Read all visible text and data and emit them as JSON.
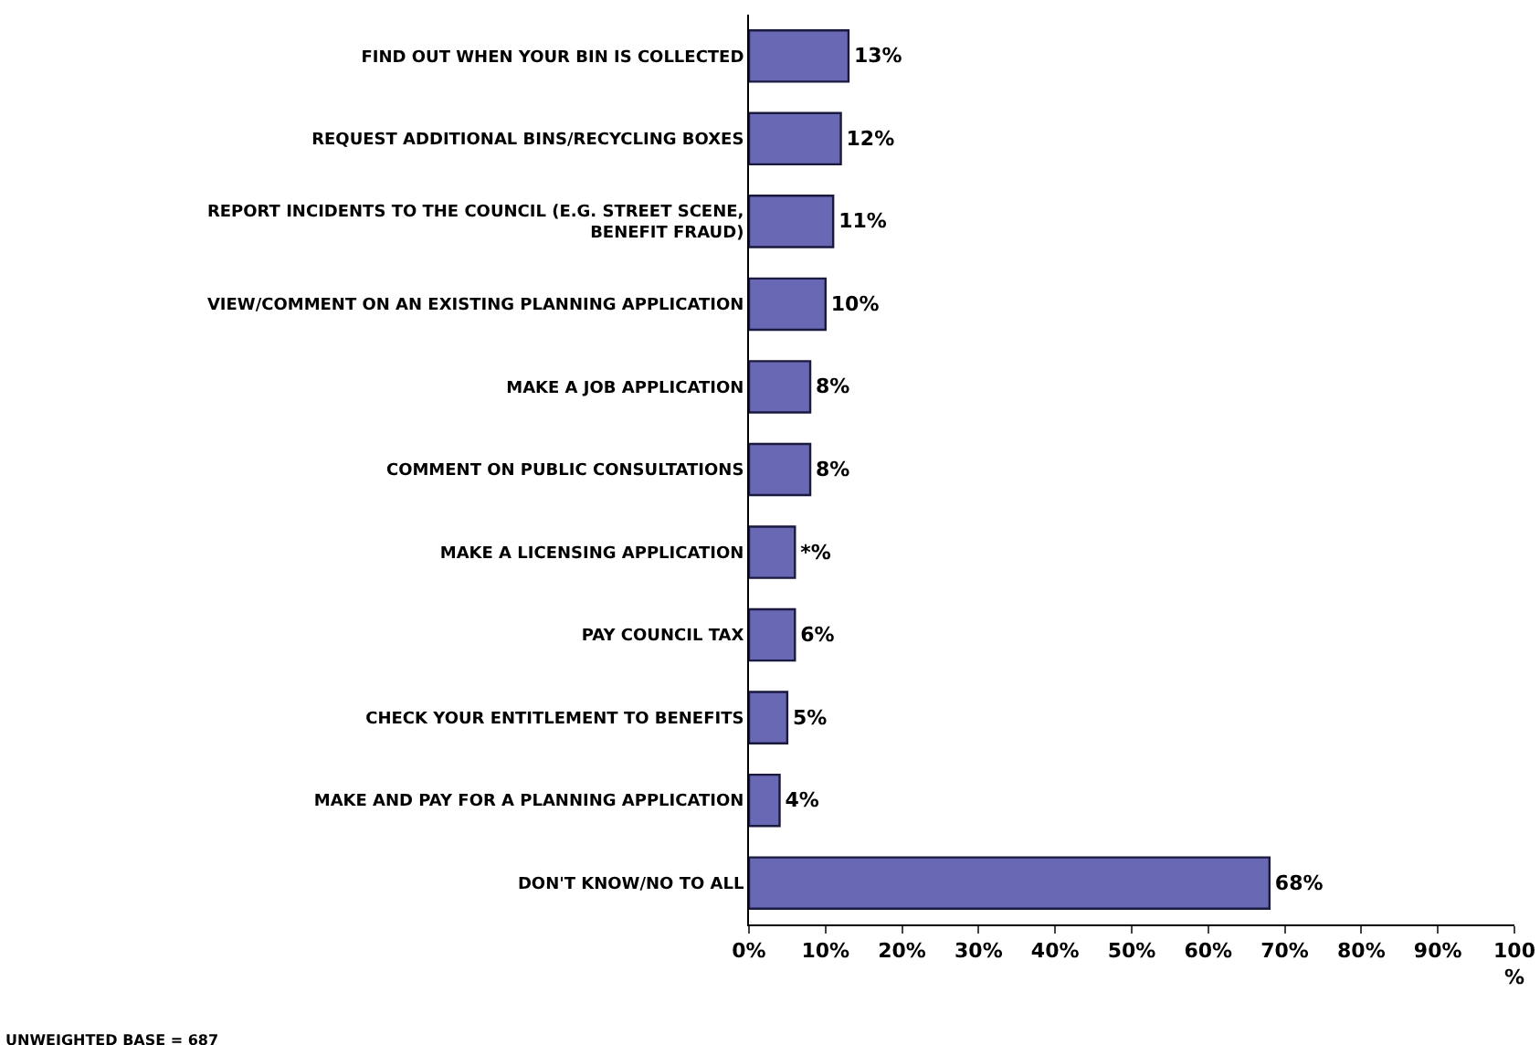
{
  "chart_data": {
    "type": "bar",
    "orientation": "horizontal",
    "categories": [
      "FIND OUT WHEN YOUR BIN IS COLLECTED",
      "REQUEST ADDITIONAL BINS/RECYCLING BOXES",
      "REPORT INCIDENTS TO THE COUNCIL (E.G. STREET SCENE, BENEFIT FRAUD)",
      "VIEW/COMMENT ON AN EXISTING PLANNING APPLICATION",
      "MAKE A JOB APPLICATION",
      "COMMENT ON PUBLIC CONSULTATIONS",
      "MAKE A LICENSING APPLICATION",
      "PAY COUNCIL TAX",
      "CHECK YOUR ENTITLEMENT TO BENEFITS",
      "MAKE AND PAY FOR A PLANNING APPLICATION",
      "DON'T KNOW/NO TO ALL"
    ],
    "values": [
      13,
      12,
      11,
      10,
      8,
      8,
      6,
      6,
      5,
      4,
      68
    ],
    "value_labels": [
      "13%",
      "12%",
      "11%",
      "10%",
      "8%",
      "8%",
      "*%",
      "6%",
      "5%",
      "4%",
      "68%"
    ],
    "color": "#6868b4",
    "xlim": [
      0,
      100
    ],
    "xticks": [
      {
        "value": 0,
        "label": "0%"
      },
      {
        "value": 10,
        "label": "10%"
      },
      {
        "value": 20,
        "label": "20%"
      },
      {
        "value": 30,
        "label": "30%"
      },
      {
        "value": 40,
        "label": "40%"
      },
      {
        "value": 50,
        "label": "50%"
      },
      {
        "value": 60,
        "label": "60%"
      },
      {
        "value": 70,
        "label": "70%"
      },
      {
        "value": 80,
        "label": "80%"
      },
      {
        "value": 90,
        "label": "90%"
      },
      {
        "value": 100,
        "label": "100\n%"
      }
    ],
    "grid": false,
    "legend": false,
    "annotations": [
      "UNWEIGHTED BASE = 687"
    ]
  }
}
